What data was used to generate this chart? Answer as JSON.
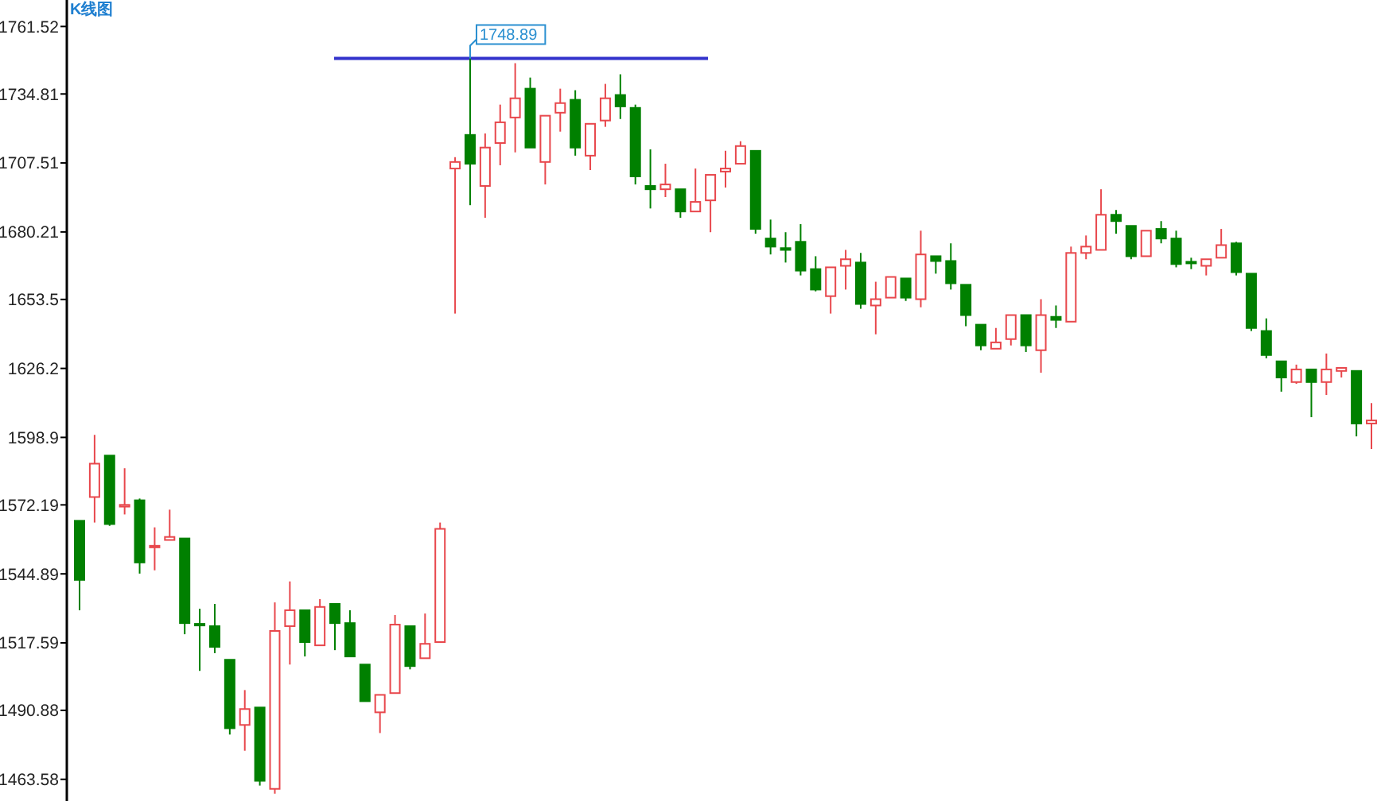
{
  "chart_data": {
    "type": "candlestick",
    "title": "K线图",
    "categories": [
      null,
      null,
      null,
      null,
      null,
      null,
      null,
      null,
      null,
      null,
      null,
      null,
      null,
      null,
      null,
      null,
      null,
      null,
      null,
      null,
      null,
      null,
      null,
      null,
      null,
      null,
      null,
      null,
      null,
      null,
      null,
      null,
      null,
      null,
      null,
      null,
      null,
      null,
      null,
      null,
      null,
      null,
      null,
      null,
      null,
      null,
      null,
      null,
      null,
      null,
      null,
      null,
      null,
      null,
      null,
      null,
      null,
      null,
      null,
      null,
      null,
      null,
      null,
      null,
      null,
      null,
      null,
      null,
      null,
      null,
      null,
      null,
      null,
      null,
      null,
      null,
      null,
      null,
      null,
      null,
      null,
      null,
      null,
      null,
      null,
      null,
      null
    ],
    "ohlc": [
      [
        1565.9,
        1565.9,
        1530.5,
        1542.5
      ],
      [
        1575.3,
        1599.9,
        1565.2,
        1588.5
      ],
      [
        1591.7,
        1591.7,
        1563.9,
        1564.6
      ],
      [
        1571.5,
        1586.7,
        1568.4,
        1572.2
      ],
      [
        1574.0,
        1574.7,
        1545.0,
        1549.4
      ],
      [
        1555.4,
        1563.3,
        1546.3,
        1556.0
      ],
      [
        1558.3,
        1570.3,
        1558.3,
        1559.5
      ],
      [
        1558.9,
        1558.9,
        1521.0,
        1525.4
      ],
      [
        1525.1,
        1531.1,
        1506.5,
        1524.8
      ],
      [
        1524.2,
        1533.0,
        1513.5,
        1516.0
      ],
      [
        1510.9,
        1510.9,
        1481.3,
        1483.8
      ],
      [
        1485.1,
        1498.9,
        1474.9,
        1491.4
      ],
      [
        1492.0,
        1492.0,
        1461.1,
        1463.0
      ],
      [
        1459.8,
        1533.6,
        1457.9,
        1522.3
      ],
      [
        1524.2,
        1541.9,
        1509.0,
        1530.5
      ],
      [
        1530.5,
        1530.5,
        1512.2,
        1517.9
      ],
      [
        1516.6,
        1534.9,
        1516.6,
        1531.8
      ],
      [
        1533.0,
        1533.0,
        1514.7,
        1525.4
      ],
      [
        1525.4,
        1530.5,
        1512.2,
        1512.2
      ],
      [
        1509.0,
        1509.0,
        1494.5,
        1494.5
      ],
      [
        1490.1,
        1497.0,
        1481.9,
        1497.0
      ],
      [
        1497.7,
        1528.6,
        1497.7,
        1524.8
      ],
      [
        1524.2,
        1524.2,
        1507.1,
        1508.4
      ],
      [
        1511.5,
        1529.2,
        1511.5,
        1517.2
      ],
      [
        1517.9,
        1565.2,
        1517.9,
        1562.7
      ],
      [
        1705.3,
        1709.8,
        1647.9,
        1707.9
      ],
      [
        1718.6,
        1748.89,
        1690.8,
        1707.2
      ],
      [
        1698.4,
        1719.2,
        1685.8,
        1713.6
      ],
      [
        1715.4,
        1730.6,
        1706.6,
        1723.6
      ],
      [
        1725.5,
        1747.0,
        1711.7,
        1733.1
      ],
      [
        1736.9,
        1741.3,
        1713.6,
        1713.6
      ],
      [
        1707.9,
        1726.2,
        1699.0,
        1726.2
      ],
      [
        1727.4,
        1736.9,
        1719.9,
        1731.2
      ],
      [
        1732.5,
        1736.3,
        1710.4,
        1713.6
      ],
      [
        1710.4,
        1723.0,
        1704.7,
        1723.0
      ],
      [
        1724.3,
        1738.8,
        1721.8,
        1733.1
      ],
      [
        1734.4,
        1742.6,
        1724.9,
        1729.9
      ],
      [
        1729.3,
        1730.6,
        1699.0,
        1702.2
      ],
      [
        1698.4,
        1712.9,
        1689.5,
        1697.1
      ],
      [
        1697.1,
        1707.2,
        1694.0,
        1699.0
      ],
      [
        1697.1,
        1697.1,
        1685.8,
        1688.3
      ],
      [
        1688.3,
        1705.3,
        1688.3,
        1692.1
      ],
      [
        1692.7,
        1702.8,
        1680.1,
        1702.8
      ],
      [
        1704.1,
        1712.3,
        1697.8,
        1705.3
      ],
      [
        1707.2,
        1716.1,
        1707.2,
        1714.2
      ],
      [
        1712.3,
        1712.3,
        1679.5,
        1681.4
      ],
      [
        1677.6,
        1685.1,
        1671.3,
        1674.4
      ],
      [
        1673.8,
        1680.1,
        1668.1,
        1673.1
      ],
      [
        1676.3,
        1683.3,
        1663.0,
        1664.9
      ],
      [
        1665.5,
        1670.6,
        1656.7,
        1657.4
      ],
      [
        1654.8,
        1666.2,
        1647.9,
        1666.2
      ],
      [
        1666.8,
        1673.1,
        1657.4,
        1669.4
      ],
      [
        1668.1,
        1671.9,
        1649.8,
        1651.7
      ],
      [
        1651.1,
        1660.5,
        1639.7,
        1653.6
      ],
      [
        1654.2,
        1662.4,
        1654.2,
        1662.4
      ],
      [
        1661.8,
        1661.8,
        1652.9,
        1654.2
      ],
      [
        1653.6,
        1680.7,
        1650.4,
        1671.3
      ],
      [
        1670.6,
        1670.6,
        1663.7,
        1668.7
      ],
      [
        1668.7,
        1675.7,
        1657.4,
        1659.9
      ],
      [
        1659.3,
        1659.3,
        1642.9,
        1647.3
      ],
      [
        1643.5,
        1643.5,
        1633.4,
        1635.3
      ],
      [
        1634.0,
        1642.2,
        1634.0,
        1636.5
      ],
      [
        1637.8,
        1647.3,
        1635.3,
        1647.3
      ],
      [
        1647.3,
        1647.3,
        1632.7,
        1635.3
      ],
      [
        1633.4,
        1653.6,
        1624.5,
        1647.3
      ],
      [
        1646.6,
        1651.1,
        1642.2,
        1645.4
      ],
      [
        1644.7,
        1674.4,
        1644.7,
        1671.9
      ],
      [
        1671.9,
        1678.8,
        1669.4,
        1674.4
      ],
      [
        1673.1,
        1697.1,
        1673.1,
        1687.0
      ],
      [
        1687.0,
        1688.9,
        1679.5,
        1684.5
      ],
      [
        1682.6,
        1682.6,
        1669.4,
        1670.6
      ],
      [
        1670.6,
        1680.7,
        1670.6,
        1680.7
      ],
      [
        1681.4,
        1684.5,
        1675.7,
        1677.6
      ],
      [
        1677.6,
        1680.7,
        1666.2,
        1667.5
      ],
      [
        1668.4,
        1670.0,
        1665.5,
        1667.8
      ],
      [
        1666.8,
        1669.4,
        1663.0,
        1669.4
      ],
      [
        1670.0,
        1681.4,
        1670.0,
        1675.0
      ],
      [
        1675.7,
        1676.3,
        1663.0,
        1664.3
      ],
      [
        1663.7,
        1663.7,
        1641.0,
        1642.2
      ],
      [
        1641.0,
        1646.0,
        1630.2,
        1631.5
      ],
      [
        1629.0,
        1629.0,
        1617.0,
        1622.6
      ],
      [
        1620.8,
        1627.7,
        1620.1,
        1625.8
      ],
      [
        1625.8,
        1625.8,
        1606.9,
        1620.8
      ],
      [
        1620.8,
        1632.1,
        1615.7,
        1625.8
      ],
      [
        1625.2,
        1626.4,
        1622.6,
        1626.4
      ],
      [
        1625.2,
        1625.2,
        1599.3,
        1604.4
      ],
      [
        1604.4,
        1612.5,
        1594.3,
        1605.6
      ]
    ],
    "ylim": [
      1455,
      1772
    ],
    "yticks": [
      1761.52,
      1734.81,
      1707.51,
      1680.21,
      1653.5,
      1626.2,
      1598.9,
      1572.19,
      1544.89,
      1517.59,
      1490.88,
      1463.58
    ],
    "tick_labels": "y",
    "ref_lines": [
      {
        "axis": "y",
        "value": 1748.89,
        "color": "#3333cc"
      }
    ],
    "annotations": [
      {
        "text": "1748.89",
        "y": 1748.89
      }
    ]
  }
}
